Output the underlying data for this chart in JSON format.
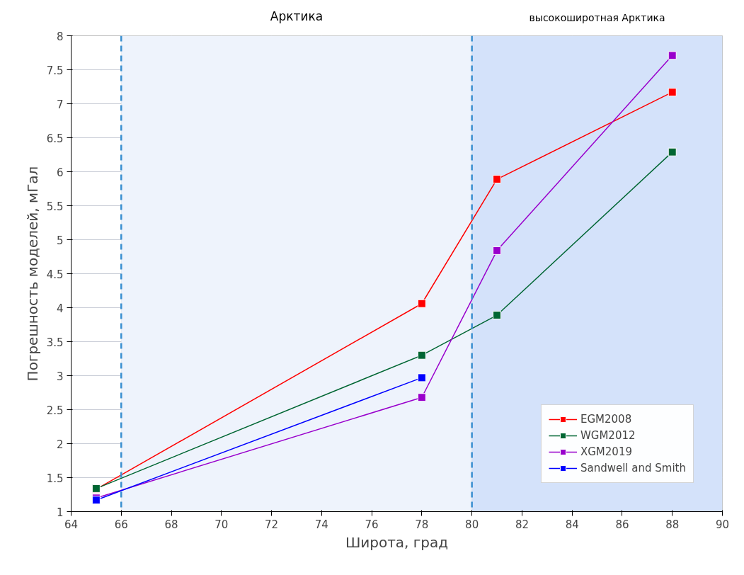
{
  "chart_data": {
    "type": "line",
    "xlabel": "Широта, град",
    "ylabel": "Погрешность моделей, мГал",
    "x": [
      65,
      78,
      81,
      88
    ],
    "series": [
      {
        "name": "EGM2008",
        "color": "#ff0000",
        "values": [
          1.33,
          4.06,
          5.89,
          7.17
        ]
      },
      {
        "name": "WGM2012",
        "color": "#006633",
        "values": [
          1.34,
          3.3,
          3.89,
          6.29
        ]
      },
      {
        "name": "XGM2019",
        "color": "#9900cc",
        "values": [
          1.2,
          2.68,
          4.84,
          7.71
        ]
      },
      {
        "name": "Sandwell and Smith",
        "color": "#0000ff",
        "values": [
          1.17,
          2.97,
          null,
          null
        ]
      }
    ],
    "xlim": [
      64,
      90
    ],
    "xticks": [
      64,
      66,
      68,
      70,
      72,
      74,
      76,
      78,
      80,
      82,
      84,
      86,
      88,
      90
    ],
    "ylim": [
      1,
      8
    ],
    "yticks": [
      1,
      1.5,
      2,
      2.5,
      3,
      3.5,
      4,
      4.5,
      5,
      5.5,
      6,
      6.5,
      7,
      7.5,
      8
    ],
    "bands": [
      {
        "axis": "x",
        "from": 66,
        "to": 80,
        "label": "Арктика",
        "color": "#eef3fc"
      },
      {
        "axis": "x",
        "from": 80,
        "to": 90,
        "label": "высокоширотная Арктика",
        "color": "#d4e2fa"
      }
    ],
    "ref_lines": [
      {
        "axis": "x",
        "value": 66,
        "color": "#3a8fd0",
        "line_style": "dashed"
      },
      {
        "axis": "x",
        "value": 80,
        "color": "#3a8fd0",
        "line_style": "dashed"
      }
    ],
    "grid": true,
    "legend": "bottom right",
    "marker": "square",
    "line_style": "solid"
  }
}
